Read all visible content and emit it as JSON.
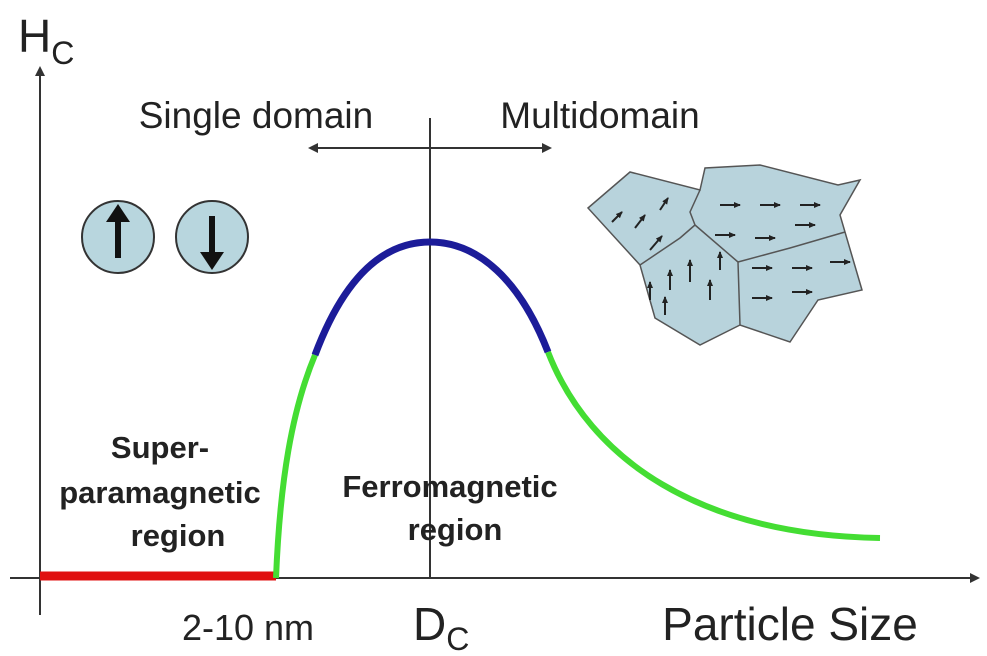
{
  "y_axis_label": {
    "main": "H",
    "sub": "C"
  },
  "single_domain": "Single domain",
  "multidomain": "Multidomain",
  "superparamagnetic_label": [
    "Super-",
    "paramagnetic",
    "region"
  ],
  "ferromagnetic_label": [
    "Ferromagnetic",
    "region"
  ],
  "size_label": "2-10 nm",
  "critical_label": {
    "main": "D",
    "sub": "C"
  },
  "x_axis_label": "Particle Size"
}
